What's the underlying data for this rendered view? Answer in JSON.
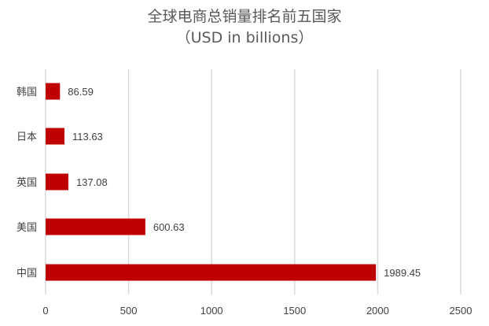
{
  "chart_data": {
    "type": "bar",
    "orientation": "horizontal",
    "title": "全球电商总销量排名前五国家",
    "subtitle": "（USD in billions）",
    "categories": [
      "韩国",
      "日本",
      "英国",
      "美国",
      "中国"
    ],
    "values": [
      86.59,
      113.63,
      137.08,
      600.63,
      1989.45
    ],
    "value_labels": [
      "86.59",
      "113.63",
      "137.08",
      "600.63",
      "1989.45"
    ],
    "xlim": [
      0,
      2500
    ],
    "xticks": [
      0,
      500,
      1000,
      1500,
      2000,
      2500
    ],
    "xlabel": "",
    "ylabel": "",
    "grid": "vertical",
    "legend": "none",
    "bar_color": "#C00000",
    "grid_color": "#D9D9D9"
  }
}
